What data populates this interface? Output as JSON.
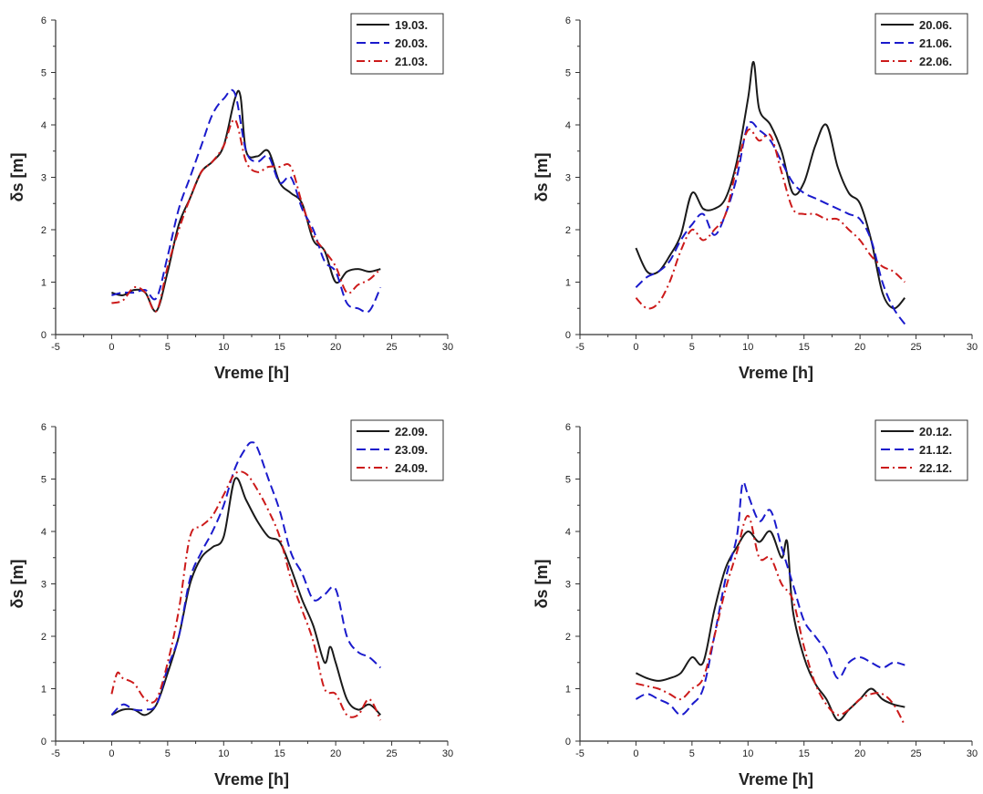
{
  "colors": {
    "black": "#1a1a1a",
    "blue": "#1a1acc",
    "red": "#cc1a1a",
    "axis": "#333333"
  },
  "chart_data": [
    {
      "type": "line",
      "xlabel": "Vreme [h]",
      "ylabel": "δs [m]",
      "xlim": [
        -5,
        30
      ],
      "ylim": [
        0,
        6
      ],
      "xticks": [
        "-5",
        "0",
        "5",
        "10",
        "15",
        "20",
        "25",
        "30"
      ],
      "yticks": [
        "0",
        "1",
        "2",
        "3",
        "4",
        "5",
        "6"
      ],
      "legend_position": "top-right",
      "series": [
        {
          "name": "19.03.",
          "color": "#1a1a1a",
          "dash": "solid",
          "x": [
            0,
            1,
            2,
            3,
            4,
            5,
            6,
            7,
            8,
            9,
            10,
            11,
            11.5,
            12,
            13,
            14,
            15,
            16,
            17,
            18,
            19,
            20,
            21,
            22,
            23,
            24
          ],
          "y": [
            0.8,
            0.75,
            0.85,
            0.8,
            0.45,
            1.2,
            2.1,
            2.6,
            3.1,
            3.3,
            3.6,
            4.5,
            4.55,
            3.5,
            3.4,
            3.5,
            2.9,
            2.7,
            2.5,
            1.8,
            1.6,
            1.0,
            1.2,
            1.25,
            1.2,
            1.25
          ]
        },
        {
          "name": "20.03.",
          "color": "#1a1acc",
          "dash": "dashed",
          "x": [
            0,
            1,
            2,
            3,
            4,
            5,
            6,
            7,
            8,
            9,
            10,
            11,
            12,
            13,
            14,
            15,
            16,
            17,
            18,
            19,
            20,
            21,
            22,
            23,
            24
          ],
          "y": [
            0.75,
            0.8,
            0.8,
            0.85,
            0.7,
            1.5,
            2.4,
            3.0,
            3.6,
            4.2,
            4.5,
            4.6,
            3.5,
            3.3,
            3.4,
            2.9,
            3.0,
            2.4,
            2.0,
            1.4,
            1.2,
            0.6,
            0.5,
            0.45,
            0.9
          ]
        },
        {
          "name": "21.03.",
          "color": "#cc1a1a",
          "dash": "dashdot",
          "x": [
            0,
            1,
            2,
            3,
            4,
            5,
            6,
            7,
            8,
            9,
            10,
            11,
            12,
            13,
            14,
            15,
            16,
            17,
            18,
            19,
            20,
            21,
            22,
            23,
            24
          ],
          "y": [
            0.6,
            0.65,
            0.9,
            0.8,
            0.45,
            1.3,
            2.0,
            2.6,
            3.1,
            3.3,
            3.6,
            4.1,
            3.3,
            3.1,
            3.2,
            3.2,
            3.2,
            2.5,
            1.9,
            1.6,
            1.3,
            0.8,
            0.95,
            1.05,
            1.25
          ]
        }
      ]
    },
    {
      "type": "line",
      "xlabel": "Vreme [h]",
      "ylabel": "δs [m]",
      "xlim": [
        -5,
        30
      ],
      "ylim": [
        0,
        6
      ],
      "xticks": [
        "-5",
        "0",
        "5",
        "10",
        "15",
        "20",
        "25",
        "30"
      ],
      "yticks": [
        "0",
        "1",
        "2",
        "3",
        "4",
        "5",
        "6"
      ],
      "legend_position": "top-right",
      "series": [
        {
          "name": "20.06.",
          "color": "#1a1a1a",
          "dash": "solid",
          "x": [
            0,
            1,
            2,
            3,
            4,
            5,
            6,
            7,
            8,
            9,
            10,
            10.5,
            11,
            12,
            13,
            14,
            15,
            16,
            17,
            18,
            19,
            20,
            21,
            22,
            23,
            24
          ],
          "y": [
            1.65,
            1.2,
            1.2,
            1.5,
            1.9,
            2.7,
            2.4,
            2.4,
            2.6,
            3.3,
            4.5,
            5.2,
            4.3,
            4.0,
            3.5,
            2.7,
            2.9,
            3.6,
            4.0,
            3.2,
            2.7,
            2.5,
            1.8,
            0.8,
            0.5,
            0.7
          ]
        },
        {
          "name": "21.06.",
          "color": "#1a1acc",
          "dash": "dashed",
          "x": [
            0,
            1,
            2,
            3,
            4,
            5,
            6,
            7,
            8,
            9,
            10,
            11,
            12,
            13,
            14,
            15,
            16,
            17,
            18,
            19,
            20,
            21,
            22,
            23,
            24
          ],
          "y": [
            0.9,
            1.1,
            1.2,
            1.4,
            1.8,
            2.1,
            2.3,
            1.9,
            2.3,
            3.0,
            4.0,
            3.9,
            3.7,
            3.3,
            2.9,
            2.7,
            2.6,
            2.5,
            2.4,
            2.3,
            2.2,
            1.8,
            1.0,
            0.5,
            0.2
          ]
        },
        {
          "name": "22.06.",
          "color": "#cc1a1a",
          "dash": "dashdot",
          "x": [
            0,
            1,
            2,
            3,
            4,
            5,
            6,
            7,
            8,
            9,
            10,
            11,
            12,
            13,
            14,
            15,
            16,
            17,
            18,
            19,
            20,
            21,
            22,
            23,
            24
          ],
          "y": [
            0.7,
            0.5,
            0.6,
            1.0,
            1.6,
            2.0,
            1.8,
            2.0,
            2.3,
            3.2,
            3.9,
            3.7,
            3.8,
            3.1,
            2.4,
            2.3,
            2.3,
            2.2,
            2.2,
            2.0,
            1.8,
            1.5,
            1.3,
            1.2,
            1.0
          ]
        }
      ]
    },
    {
      "type": "line",
      "xlabel": "Vreme [h]",
      "ylabel": "δs [m]",
      "xlim": [
        -5,
        30
      ],
      "ylim": [
        0,
        6
      ],
      "xticks": [
        "-5",
        "0",
        "5",
        "10",
        "15",
        "20",
        "25",
        "30"
      ],
      "yticks": [
        "0",
        "1",
        "2",
        "3",
        "4",
        "5",
        "6"
      ],
      "legend_position": "top-right",
      "series": [
        {
          "name": "22.09.",
          "color": "#1a1a1a",
          "dash": "solid",
          "x": [
            0,
            1,
            2,
            3,
            4,
            5,
            6,
            7,
            8,
            9,
            10,
            11,
            12,
            13,
            14,
            15,
            16,
            17,
            18,
            19,
            19.5,
            20,
            21,
            22,
            23,
            24
          ],
          "y": [
            0.5,
            0.6,
            0.6,
            0.5,
            0.7,
            1.3,
            2.0,
            3.0,
            3.5,
            3.7,
            3.9,
            5.0,
            4.6,
            4.2,
            3.9,
            3.8,
            3.3,
            2.7,
            2.2,
            1.5,
            1.8,
            1.5,
            0.8,
            0.6,
            0.7,
            0.5
          ]
        },
        {
          "name": "23.09.",
          "color": "#1a1acc",
          "dash": "dashed",
          "x": [
            0,
            1,
            2,
            3,
            4,
            5,
            6,
            7,
            8,
            9,
            10,
            11,
            12,
            12.5,
            13,
            14,
            15,
            16,
            17,
            18,
            19,
            20,
            21,
            22,
            23,
            24
          ],
          "y": [
            0.5,
            0.7,
            0.6,
            0.6,
            0.7,
            1.4,
            2.0,
            3.1,
            3.6,
            4.0,
            4.5,
            5.2,
            5.6,
            5.7,
            5.6,
            5.0,
            4.4,
            3.6,
            3.2,
            2.7,
            2.8,
            2.9,
            2.0,
            1.7,
            1.6,
            1.4
          ]
        },
        {
          "name": "24.09.",
          "color": "#cc1a1a",
          "dash": "dashdot",
          "x": [
            0,
            0.5,
            1,
            2,
            3,
            4,
            5,
            6,
            7,
            8,
            9,
            10,
            11,
            12,
            13,
            14,
            15,
            16,
            17,
            18,
            19,
            20,
            21,
            22,
            23,
            24
          ],
          "y": [
            0.9,
            1.3,
            1.2,
            1.1,
            0.8,
            0.8,
            1.5,
            2.5,
            3.9,
            4.1,
            4.3,
            4.7,
            5.1,
            5.1,
            4.8,
            4.4,
            3.9,
            3.1,
            2.5,
            1.9,
            1.0,
            0.9,
            0.5,
            0.5,
            0.8,
            0.4
          ]
        }
      ]
    },
    {
      "type": "line",
      "xlabel": "Vreme [h]",
      "ylabel": "δs [m]",
      "xlim": [
        -5,
        30
      ],
      "ylim": [
        0,
        6
      ],
      "xticks": [
        "-5",
        "0",
        "5",
        "10",
        "15",
        "20",
        "25",
        "30"
      ],
      "yticks": [
        "0",
        "1",
        "2",
        "3",
        "4",
        "5",
        "6"
      ],
      "legend_position": "top-right",
      "series": [
        {
          "name": "20.12.",
          "color": "#1a1a1a",
          "dash": "solid",
          "x": [
            0,
            1,
            2,
            3,
            4,
            5,
            6,
            7,
            8,
            9,
            10,
            11,
            12,
            13,
            13.5,
            14,
            15,
            16,
            17,
            18,
            19,
            20,
            21,
            22,
            23,
            24
          ],
          "y": [
            1.3,
            1.2,
            1.15,
            1.2,
            1.3,
            1.6,
            1.5,
            2.5,
            3.3,
            3.7,
            4.0,
            3.8,
            4.0,
            3.5,
            3.8,
            2.5,
            1.6,
            1.1,
            0.8,
            0.4,
            0.6,
            0.8,
            1.0,
            0.8,
            0.7,
            0.65
          ]
        },
        {
          "name": "21.12.",
          "color": "#1a1acc",
          "dash": "dashed",
          "x": [
            0,
            1,
            2,
            3,
            4,
            5,
            6,
            7,
            8,
            9,
            9.5,
            10,
            11,
            12,
            13,
            14,
            15,
            16,
            17,
            18,
            19,
            20,
            21,
            22,
            23,
            24
          ],
          "y": [
            0.8,
            0.9,
            0.8,
            0.7,
            0.5,
            0.7,
            1.0,
            2.0,
            3.1,
            3.9,
            4.9,
            4.7,
            4.2,
            4.4,
            3.7,
            3.0,
            2.3,
            2.0,
            1.7,
            1.2,
            1.5,
            1.6,
            1.5,
            1.4,
            1.5,
            1.45
          ]
        },
        {
          "name": "22.12.",
          "color": "#cc1a1a",
          "dash": "dashdot",
          "x": [
            0,
            1,
            2,
            3,
            4,
            5,
            6,
            7,
            8,
            9,
            10,
            11,
            12,
            13,
            14,
            15,
            16,
            17,
            18,
            19,
            20,
            21,
            22,
            23,
            24
          ],
          "y": [
            1.1,
            1.05,
            1.0,
            0.9,
            0.8,
            1.0,
            1.2,
            2.0,
            2.9,
            3.6,
            4.3,
            3.5,
            3.5,
            3.0,
            2.7,
            1.8,
            1.1,
            0.7,
            0.5,
            0.6,
            0.8,
            0.9,
            0.9,
            0.7,
            0.3
          ]
        }
      ]
    }
  ]
}
